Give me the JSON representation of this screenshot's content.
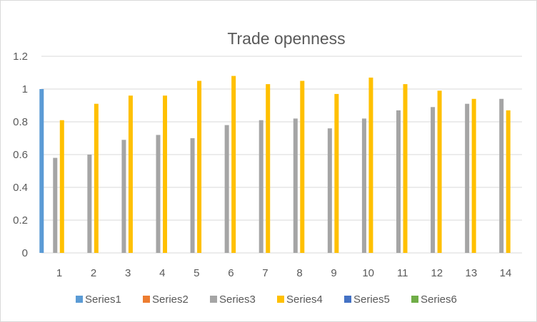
{
  "chart_data": {
    "type": "bar",
    "title": "Trade openness",
    "xlabel": "",
    "ylabel": "",
    "categories": [
      "1",
      "2",
      "3",
      "4",
      "5",
      "6",
      "7",
      "8",
      "9",
      "10",
      "11",
      "12",
      "13",
      "14"
    ],
    "ylim": [
      0,
      1.2
    ],
    "yticks": [
      0,
      0.2,
      0.4,
      0.6,
      0.8,
      1,
      1.2
    ],
    "ytick_labels": [
      "0",
      "0.2",
      "0.4",
      "0.6",
      "0.8",
      "1",
      "1.2"
    ],
    "grid": true,
    "legend_position": "bottom",
    "series": [
      {
        "name": "Series1",
        "color": "#5b9bd5",
        "values": [
          1.0,
          null,
          null,
          null,
          null,
          null,
          null,
          null,
          null,
          null,
          null,
          null,
          null,
          null
        ]
      },
      {
        "name": "Series2",
        "color": "#ed7d31",
        "values": [
          null,
          null,
          null,
          null,
          null,
          null,
          null,
          null,
          null,
          null,
          null,
          null,
          null,
          null
        ]
      },
      {
        "name": "Series3",
        "color": "#a5a5a5",
        "values": [
          0.58,
          0.6,
          0.69,
          0.72,
          0.7,
          0.78,
          0.81,
          0.82,
          0.76,
          0.82,
          0.87,
          0.89,
          0.91,
          0.94
        ]
      },
      {
        "name": "Series4",
        "color": "#ffc000",
        "values": [
          0.81,
          0.91,
          0.96,
          0.96,
          1.05,
          1.08,
          1.03,
          1.05,
          0.97,
          1.07,
          1.03,
          0.99,
          0.94,
          0.87
        ]
      },
      {
        "name": "Series5",
        "color": "#4472c4",
        "values": [
          null,
          null,
          null,
          null,
          null,
          null,
          null,
          null,
          null,
          null,
          null,
          null,
          null,
          null
        ]
      },
      {
        "name": "Series6",
        "color": "#70ad47",
        "values": [
          null,
          null,
          null,
          null,
          null,
          null,
          null,
          null,
          null,
          null,
          null,
          null,
          null,
          null
        ]
      }
    ]
  }
}
